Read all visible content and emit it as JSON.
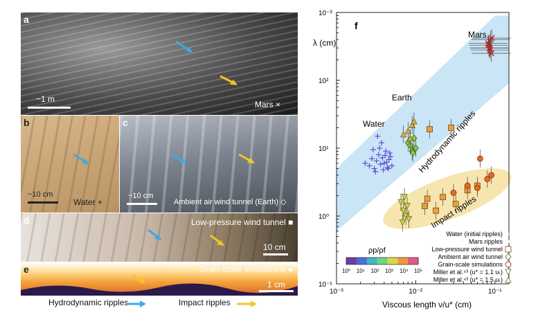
{
  "panels": {
    "a": {
      "label": "a",
      "scale": "~1 m",
      "caption": "Mars ×"
    },
    "b": {
      "label": "b",
      "scale": "~10 cm",
      "caption": "Water +"
    },
    "c": {
      "label": "c",
      "scale": "~10 cm",
      "caption": "Ambient air wind tunnel (Earth) ◇"
    },
    "d": {
      "label": "d",
      "scale": "10 cm",
      "caption": "Low-pressure wind tunnel ■"
    },
    "e": {
      "label": "e",
      "scale": "1 cm",
      "caption": "Grain-scale simulations ●"
    }
  },
  "bottom_legend": {
    "hydro": "Hydrodynamic ripples",
    "impact": "Impact ripples"
  },
  "colors": {
    "hydro_arrow": "#3fa9e0",
    "impact_arrow": "#f2c62a",
    "hydro_band": "#bfe0f5",
    "impact_band": "#f6e2a6"
  },
  "chart_data": {
    "type": "scatter",
    "panel_label": "f",
    "xlabel": "Viscous length ν/u* (cm)",
    "ylabel": "λ (cm)",
    "xscale": "log",
    "yscale": "log",
    "xlim": [
      0.001,
      0.15
    ],
    "ylim": [
      0.1,
      1000
    ],
    "xticks": [
      "10⁻³",
      "10⁻²",
      "10⁻¹"
    ],
    "yticks": [
      "10⁻¹",
      "10⁰",
      "10¹",
      "10²",
      "10⁻³"
    ],
    "annotations": [
      "Mars",
      "Earth",
      "Water",
      "Hydrodynamic ripples",
      "Impact ripples"
    ],
    "colorbar": {
      "title": "ρp/ρf",
      "ticks": [
        "10⁰",
        "10¹",
        "10²",
        "10³",
        "10⁴",
        "10⁵"
      ]
    },
    "legend": [
      {
        "label": "Water (initial ripples)",
        "marker": "+"
      },
      {
        "label": "Mars ripples",
        "marker": "×"
      },
      {
        "label": "Low-pressure wind tunnel",
        "marker": "□"
      },
      {
        "label": "Ambient air wind tunnel",
        "marker": "◇"
      },
      {
        "label": "Grain-scale simulations",
        "marker": "○"
      },
      {
        "label": "Miller et al.⁴³ (u* = 1.1 uₜ)",
        "marker": "▽"
      },
      {
        "label": "Miller et al.⁴³ (u* = 1.5 uₜ)",
        "marker": "△"
      }
    ],
    "series": [
      {
        "name": "Water (initial ripples)",
        "marker": "plus",
        "color": "#5a4fd6",
        "x": [
          0.0023,
          0.0026,
          0.0028,
          0.003,
          0.0032,
          0.0034,
          0.0036,
          0.0038,
          0.004,
          0.0042,
          0.0044,
          0.0046,
          0.0048,
          0.005,
          0.0031,
          0.0035,
          0.0039,
          0.0043,
          0.0047,
          0.0037,
          0.0041,
          0.0029,
          0.0045,
          0.0033
        ],
        "y": [
          6,
          5.5,
          7,
          5,
          6.5,
          8,
          5.8,
          7.2,
          6,
          9,
          5.2,
          6.8,
          7.5,
          5.5,
          4.5,
          10,
          4.8,
          6.2,
          8.5,
          12,
          7.8,
          9.5,
          5,
          15
        ]
      },
      {
        "name": "Mars ripples",
        "marker": "x",
        "color": "#cc2222",
        "x": [
          0.082,
          0.085,
          0.088,
          0.09,
          0.083,
          0.087,
          0.091,
          0.086
        ],
        "y": [
          350,
          300,
          400,
          250,
          330,
          280,
          420,
          300
        ]
      },
      {
        "name": "Low-pressure wind tunnel",
        "marker": "square",
        "color": "#e8a040",
        "x": [
          0.013,
          0.014,
          0.018,
          0.022,
          0.015,
          0.028,
          0.032,
          0.045,
          0.06
        ],
        "y": [
          1.4,
          1.8,
          1.2,
          1.9,
          19,
          20,
          1.5,
          2.4,
          2.8
        ]
      },
      {
        "name": "Ambient air wind tunnel",
        "marker": "diamond",
        "color": "#8bc34a",
        "x": [
          0.008,
          0.009,
          0.0095,
          0.01,
          0.0085,
          0.0092
        ],
        "y": [
          12,
          9,
          14,
          10,
          11,
          8.5
        ]
      },
      {
        "name": "Grain-scale simulations",
        "marker": "circle",
        "color": "#e86a20",
        "x": [
          0.03,
          0.045,
          0.06,
          0.08,
          0.09,
          0.065
        ],
        "y": [
          2.2,
          2.8,
          2.6,
          3.5,
          4,
          7
        ]
      },
      {
        "name": "Miller et al.⁴³ (u* = 1.1 uₜ)",
        "marker": "tri-down",
        "color": "#c8d84a",
        "x": [
          0.0065,
          0.007,
          0.0075,
          0.0068,
          0.0072,
          0.0078,
          0.0082
        ],
        "y": [
          1.6,
          1.2,
          1.0,
          0.8,
          1.9,
          1.4,
          0.9
        ]
      },
      {
        "name": "Miller et al.⁴³ (u* = 1.5 uₜ)",
        "marker": "tri-up",
        "color": "#d9b43a",
        "x": [
          0.007,
          0.008,
          0.009,
          0.0085,
          0.0095
        ],
        "y": [
          16,
          18,
          22,
          14,
          25
        ]
      }
    ]
  }
}
